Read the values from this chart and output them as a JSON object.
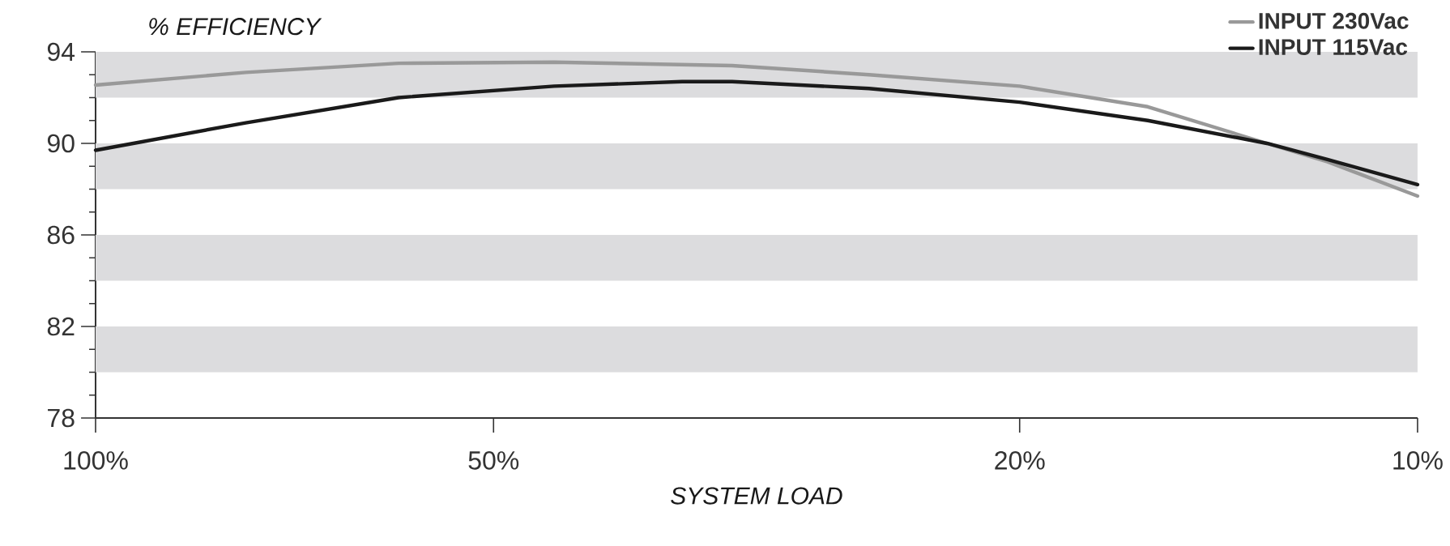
{
  "chart_data": {
    "type": "line",
    "ylabel": "% EFFICIENCY",
    "xlabel": "SYSTEM LOAD",
    "xlim": [
      100,
      10
    ],
    "ylim": [
      78,
      94
    ],
    "log": "x",
    "xticks": [
      {
        "value": 100,
        "label": "100%"
      },
      {
        "value": 50,
        "label": "50%"
      },
      {
        "value": 20,
        "label": "20%"
      },
      {
        "value": 10,
        "label": "10%"
      }
    ],
    "yticks": [
      78,
      82,
      86,
      90,
      94
    ],
    "grid": false,
    "legend": "top right",
    "marker": "none",
    "line_style": "solid",
    "bands": [
      {
        "axis": "y",
        "from": 80,
        "to": 82,
        "color": "#dcdcde"
      },
      {
        "axis": "y",
        "from": 84,
        "to": 86,
        "color": "#dcdcde"
      },
      {
        "axis": "y",
        "from": 88,
        "to": 90,
        "color": "#dcdcde"
      },
      {
        "axis": "y",
        "from": 92,
        "to": 94,
        "color": "#dcdcde"
      }
    ],
    "series": [
      {
        "name": "INPUT 230Vac",
        "color": "#999999",
        "x": [
          100,
          77,
          59,
          45,
          33,
          26,
          20,
          16,
          13,
          11.7,
          10
        ],
        "values": [
          92.55,
          93.1,
          93.5,
          93.55,
          93.4,
          93.0,
          92.5,
          91.6,
          90.0,
          89.2,
          87.7
        ]
      },
      {
        "name": "INPUT 115Vac",
        "color": "#1a1a1a",
        "x": [
          100,
          77,
          59,
          45,
          36,
          33,
          26,
          20,
          16,
          13,
          11.7,
          10
        ],
        "values": [
          89.7,
          90.9,
          92.0,
          92.5,
          92.7,
          92.7,
          92.4,
          91.8,
          91.0,
          90.0,
          89.3,
          88.2
        ]
      }
    ]
  }
}
